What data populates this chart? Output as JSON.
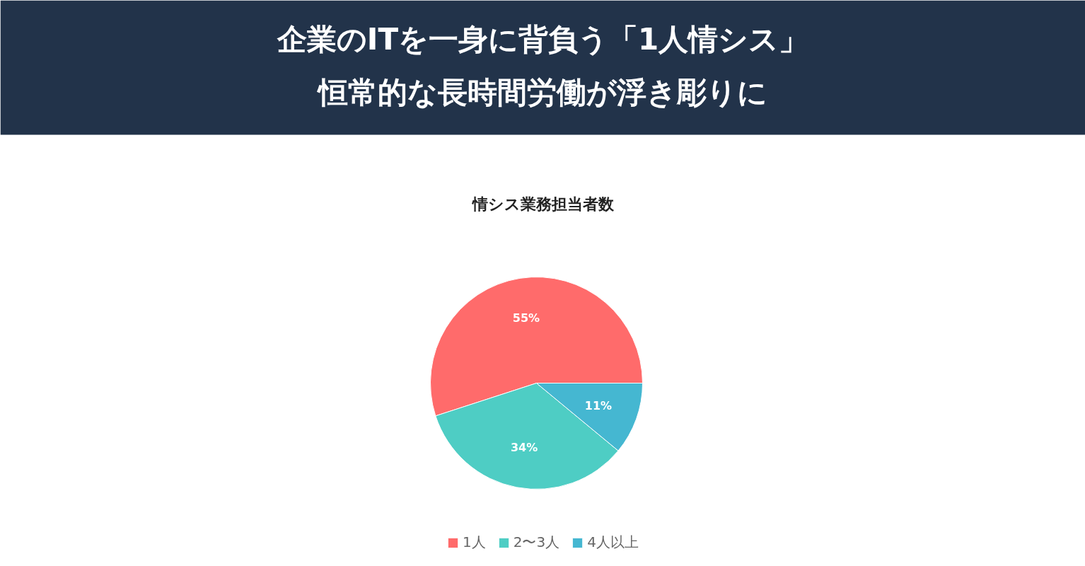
{
  "chart_data": {
    "type": "pie",
    "title": "企業のITを一身に背負う「1人情シス」恒常的な長時間労働が浮き彫りに",
    "subtitle": "情シス業務担当者数",
    "categories": [
      "1人",
      "2〜3人",
      "4人以上"
    ],
    "values": [
      55,
      34,
      11
    ],
    "value_labels": [
      "55%",
      "34%",
      "11%"
    ],
    "colors": [
      "#ff6b6b",
      "#4ecdc4",
      "#45b7d1"
    ],
    "legend": "bottom"
  }
}
